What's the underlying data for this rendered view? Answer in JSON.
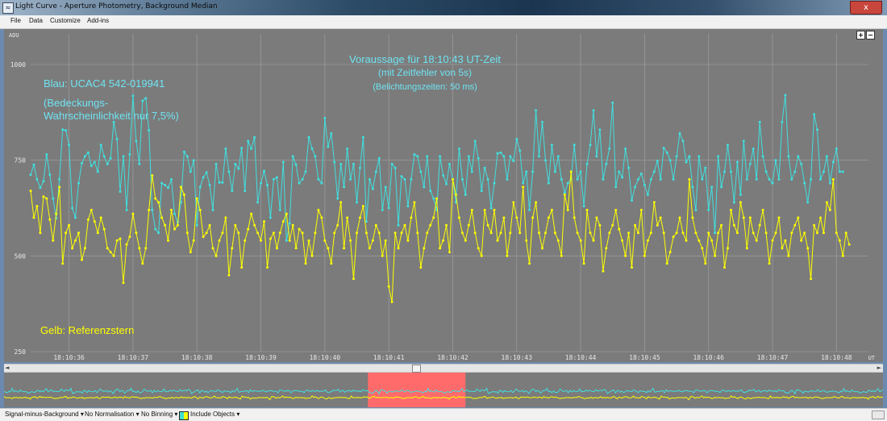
{
  "window": {
    "title": "Light Curve - Aperture Photometry, Background Median",
    "close_glyph": "x"
  },
  "menu": {
    "items": [
      "File",
      "Data",
      "Customize",
      "Add-ins"
    ]
  },
  "chart_data": {
    "type": "line",
    "ylabel": "ADU",
    "xlabel": "UT",
    "ylim": [
      250,
      1080
    ],
    "yticks": [
      250,
      500,
      750,
      1000
    ],
    "xticks": [
      "18:10:36",
      "18:10:37",
      "18:10:38",
      "18:10:39",
      "18:10:40",
      "18:10:41",
      "18:10:42",
      "18:10:43",
      "18:10:44",
      "18:10:45",
      "18:10:46",
      "18:10:47",
      "18:10:48"
    ],
    "xlim": [
      35.4,
      48.5
    ],
    "grid": true,
    "annotations": [
      "Voraussage für 18:10:43 UT-Zeit",
      "(mit Zeitfehler von 5s)",
      "(Belichtungszeiten:  50 ms)",
      "Blau: UCAC4  542-019941",
      "(Bedeckungs-",
      "Wahrscheinlichkeit nur 7,5%)",
      "Gelb: Referenzstern"
    ],
    "series": [
      {
        "color": "#40e0e0",
        "x_start": 35.4,
        "x_step": 0.05,
        "values": [
          712,
          738,
          700,
          678,
          695,
          765,
          712,
          650,
          598,
          700,
          830,
          828,
          790,
          625,
          600,
          690,
          742,
          760,
          770,
          735,
          745,
          720,
          790,
          760,
          740,
          755,
          850,
          805,
          668,
          760,
          620,
          765,
          918,
          800,
          740,
          905,
          912,
          828,
          620,
          570,
          560,
          690,
          685,
          678,
          700,
          610,
          588,
          640,
          772,
          760,
          720,
          750,
          580,
          680,
          705,
          718,
          685,
          620,
          740,
          692,
          692,
          780,
          720,
          670,
          740,
          728,
          782,
          670,
          800,
          780,
          810,
          640,
          690,
          722,
          685,
          600,
          700,
          705,
          620,
          745,
          540,
          585,
          760,
          738,
          690,
          700,
          720,
          810,
          780,
          760,
          700,
          690,
          860,
          785,
          820,
          745,
          650,
          740,
          680,
          780,
          700,
          740,
          640,
          730,
          810,
          590,
          700,
          675,
          720,
          755,
          620,
          680,
          625,
          740,
          730,
          580,
          708,
          700,
          630,
          700,
          765,
          760,
          720,
          680,
          760,
          670,
          650,
          620,
          760,
          710,
          688,
          740,
          700,
          640,
          780,
          700,
          660,
          760,
          720,
          800,
          755,
          670,
          730,
          700,
          625,
          690,
          768,
          770,
          760,
          700,
          760,
          748,
          805,
          775,
          690,
          720,
          620,
          720,
          880,
          760,
          850,
          750,
          690,
          790,
          720,
          760,
          700,
          665,
          690,
          700,
          790,
          700,
          720,
          630,
          740,
          790,
          880,
          760,
          830,
          700,
          740,
          780,
          900,
          680,
          720,
          705,
          780,
          730,
          645,
          680,
          700,
          715,
          685,
          660,
          700,
          720,
          748,
          700,
          782,
          770,
          750,
          700,
          760,
          820,
          800,
          745,
          760,
          680,
          620,
          760,
          700,
          730,
          620,
          680,
          560,
          760,
          680,
          720,
          790,
          720,
          640,
          745,
          660,
          800,
          700,
          740,
          780,
          700,
          850,
          760,
          720,
          700,
          690,
          750,
          700,
          850,
          920,
          760,
          700,
          720,
          760,
          740,
          690,
          640,
          700,
          870,
          830,
          700,
          720,
          760,
          690,
          745,
          780,
          720,
          720
        ]
      },
      {
        "color": "#ffff00",
        "x_start": 35.4,
        "x_step": 0.05,
        "values": [
          670,
          600,
          630,
          560,
          655,
          650,
          595,
          540,
          610,
          680,
          480,
          560,
          580,
          520,
          540,
          560,
          490,
          520,
          595,
          620,
          590,
          560,
          600,
          570,
          520,
          510,
          500,
          540,
          545,
          430,
          530,
          550,
          610,
          560,
          520,
          480,
          520,
          620,
          710,
          650,
          640,
          600,
          580,
          540,
          620,
          570,
          580,
          680,
          660,
          560,
          510,
          540,
          650,
          620,
          550,
          560,
          580,
          520,
          500,
          540,
          560,
          600,
          450,
          520,
          580,
          560,
          470,
          540,
          570,
          610,
          580,
          560,
          540,
          590,
          470,
          545,
          560,
          520,
          560,
          590,
          610,
          540,
          580,
          520,
          570,
          560,
          480,
          540,
          500,
          560,
          620,
          600,
          540,
          520,
          480,
          560,
          580,
          640,
          520,
          600,
          540,
          440,
          560,
          600,
          630,
          560,
          520,
          540,
          580,
          560,
          500,
          540,
          420,
          380,
          560,
          520,
          560,
          580,
          540,
          600,
          640,
          560,
          470,
          520,
          560,
          580,
          600,
          650,
          520,
          540,
          580,
          510,
          700,
          660,
          600,
          560,
          540,
          580,
          620,
          560,
          520,
          500,
          620,
          580,
          560,
          620,
          540,
          560,
          600,
          500,
          560,
          640,
          600,
          560,
          680,
          540,
          480,
          600,
          640,
          560,
          520,
          560,
          600,
          620,
          560,
          540,
          500,
          660,
          620,
          720,
          600,
          560,
          540,
          480,
          620,
          560,
          540,
          600,
          580,
          460,
          520,
          560,
          580,
          620,
          570,
          540,
          500,
          560,
          470,
          580,
          560,
          620,
          500,
          540,
          560,
          640,
          580,
          600,
          560,
          480,
          510,
          550,
          560,
          600,
          560,
          540,
          700,
          600,
          560,
          540,
          520,
          480,
          560,
          540,
          500,
          560,
          580,
          470,
          520,
          620,
          580,
          560,
          640,
          600,
          520,
          600,
          560,
          540,
          580,
          620,
          560,
          480,
          540,
          560,
          600,
          520,
          540,
          500,
          560,
          580,
          600,
          540,
          560,
          520,
          440,
          580,
          560,
          600,
          560,
          640,
          620,
          700,
          560,
          540,
          500,
          560,
          530
        ]
      }
    ],
    "overview": {
      "window_x_start": 0.414,
      "window_x_end": 0.525
    }
  },
  "scroll": {
    "left_glyph": "◄",
    "right_glyph": "►"
  },
  "zoom": {
    "plus": "+",
    "minus": "−"
  },
  "status": {
    "signal": "Signal-minus-Background",
    "normalisation": "No Normalisation",
    "binning": "No Binning",
    "objects": "Include Objects"
  },
  "colors": {
    "plot_bg": "#7b7b7b",
    "grid": "#9a9a9a",
    "blue_series": "#40e0e0",
    "yellow_series": "#ffff00",
    "overview_highlight": "#ff6b6b"
  }
}
